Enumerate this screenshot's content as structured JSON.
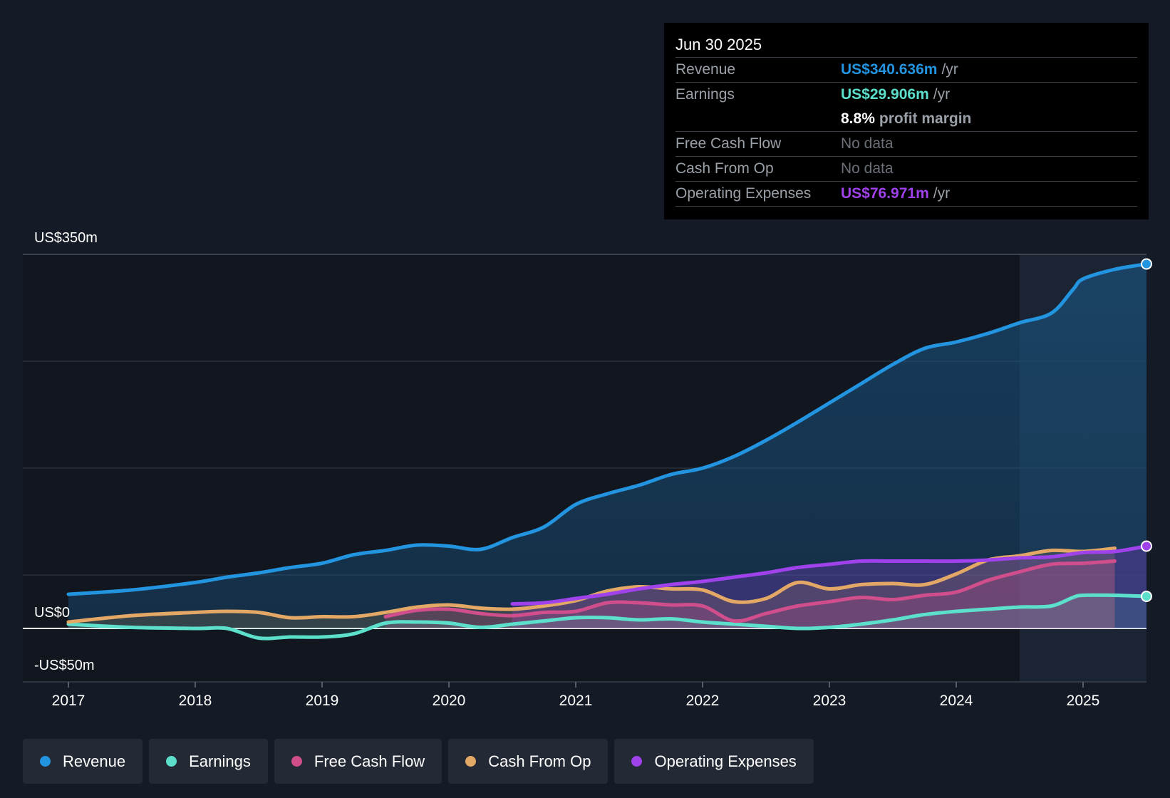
{
  "chart_data": {
    "type": "line",
    "x_ticks": [
      "2017",
      "2018",
      "2019",
      "2020",
      "2021",
      "2022",
      "2023",
      "2024",
      "2025"
    ],
    "y_labels": {
      "top": "US$350m",
      "zero": "US$0",
      "bottom": "-US$50m"
    },
    "ylim": [
      -50,
      350
    ],
    "xlim": [
      2017.0,
      2025.5
    ],
    "series": [
      {
        "name": "Revenue",
        "color": "#2394df",
        "points": [
          [
            2017.0,
            32
          ],
          [
            2017.5,
            36
          ],
          [
            2018.0,
            43
          ],
          [
            2018.25,
            48
          ],
          [
            2018.5,
            52
          ],
          [
            2018.75,
            57
          ],
          [
            2019.0,
            61
          ],
          [
            2019.25,
            69
          ],
          [
            2019.5,
            73
          ],
          [
            2019.75,
            78
          ],
          [
            2020.0,
            77
          ],
          [
            2020.25,
            74
          ],
          [
            2020.5,
            85
          ],
          [
            2020.75,
            95
          ],
          [
            2021.0,
            116
          ],
          [
            2021.25,
            126
          ],
          [
            2021.5,
            134
          ],
          [
            2021.75,
            144
          ],
          [
            2022.0,
            150
          ],
          [
            2022.25,
            161
          ],
          [
            2022.5,
            176
          ],
          [
            2022.75,
            193
          ],
          [
            2023.0,
            211
          ],
          [
            2023.25,
            229
          ],
          [
            2023.5,
            247
          ],
          [
            2023.75,
            262
          ],
          [
            2024.0,
            268
          ],
          [
            2024.25,
            276
          ],
          [
            2024.5,
            286
          ],
          [
            2024.75,
            295
          ],
          [
            2024.92,
            317
          ],
          [
            2025.0,
            327
          ],
          [
            2025.25,
            336
          ],
          [
            2025.5,
            341
          ]
        ]
      },
      {
        "name": "Earnings",
        "color": "#5ce0cc",
        "points": [
          [
            2017.0,
            4
          ],
          [
            2017.5,
            1
          ],
          [
            2018.0,
            0
          ],
          [
            2018.25,
            0
          ],
          [
            2018.5,
            -9
          ],
          [
            2018.75,
            -8
          ],
          [
            2019.0,
            -8
          ],
          [
            2019.25,
            -5
          ],
          [
            2019.5,
            5
          ],
          [
            2019.75,
            6
          ],
          [
            2020.0,
            5
          ],
          [
            2020.25,
            1
          ],
          [
            2020.5,
            4
          ],
          [
            2020.75,
            7
          ],
          [
            2021.0,
            10
          ],
          [
            2021.25,
            10
          ],
          [
            2021.5,
            8
          ],
          [
            2021.75,
            9
          ],
          [
            2022.0,
            6
          ],
          [
            2022.25,
            4
          ],
          [
            2022.5,
            2
          ],
          [
            2022.75,
            0
          ],
          [
            2023.0,
            1
          ],
          [
            2023.25,
            4
          ],
          [
            2023.5,
            8
          ],
          [
            2023.75,
            13
          ],
          [
            2024.0,
            16
          ],
          [
            2024.25,
            18
          ],
          [
            2024.5,
            20
          ],
          [
            2024.75,
            21
          ],
          [
            2024.92,
            29
          ],
          [
            2025.0,
            31
          ],
          [
            2025.25,
            31
          ],
          [
            2025.5,
            30
          ]
        ]
      },
      {
        "name": "Free Cash Flow",
        "color": "#d04e8b",
        "points": [
          [
            2019.5,
            11
          ],
          [
            2019.75,
            17
          ],
          [
            2020.0,
            18
          ],
          [
            2020.25,
            14
          ],
          [
            2020.5,
            12
          ],
          [
            2020.75,
            15
          ],
          [
            2021.0,
            16
          ],
          [
            2021.25,
            24
          ],
          [
            2021.5,
            24
          ],
          [
            2021.75,
            22
          ],
          [
            2022.0,
            21
          ],
          [
            2022.25,
            7
          ],
          [
            2022.5,
            14
          ],
          [
            2022.75,
            21
          ],
          [
            2023.0,
            25
          ],
          [
            2023.25,
            29
          ],
          [
            2023.5,
            27
          ],
          [
            2023.75,
            31
          ],
          [
            2024.0,
            34
          ],
          [
            2024.25,
            45
          ],
          [
            2024.5,
            53
          ],
          [
            2024.75,
            60
          ],
          [
            2025.0,
            61
          ],
          [
            2025.25,
            63
          ]
        ]
      },
      {
        "name": "Cash From Op",
        "color": "#e3a865",
        "points": [
          [
            2017.0,
            6
          ],
          [
            2017.5,
            12
          ],
          [
            2018.0,
            15
          ],
          [
            2018.25,
            16
          ],
          [
            2018.5,
            15
          ],
          [
            2018.75,
            10
          ],
          [
            2019.0,
            11
          ],
          [
            2019.25,
            11
          ],
          [
            2019.5,
            15
          ],
          [
            2019.75,
            20
          ],
          [
            2020.0,
            22
          ],
          [
            2020.25,
            19
          ],
          [
            2020.5,
            18
          ],
          [
            2020.75,
            21
          ],
          [
            2021.0,
            26
          ],
          [
            2021.25,
            35
          ],
          [
            2021.5,
            39
          ],
          [
            2021.75,
            37
          ],
          [
            2022.0,
            36
          ],
          [
            2022.25,
            25
          ],
          [
            2022.5,
            28
          ],
          [
            2022.75,
            43
          ],
          [
            2023.0,
            37
          ],
          [
            2023.25,
            41
          ],
          [
            2023.5,
            42
          ],
          [
            2023.75,
            41
          ],
          [
            2024.0,
            51
          ],
          [
            2024.25,
            64
          ],
          [
            2024.5,
            68
          ],
          [
            2024.75,
            73
          ],
          [
            2025.0,
            72
          ],
          [
            2025.25,
            75
          ]
        ]
      },
      {
        "name": "Operating Expenses",
        "color": "#a042ec",
        "points": [
          [
            2020.5,
            23
          ],
          [
            2020.75,
            24
          ],
          [
            2021.0,
            28
          ],
          [
            2021.25,
            32
          ],
          [
            2021.5,
            37
          ],
          [
            2021.75,
            41
          ],
          [
            2022.0,
            44
          ],
          [
            2022.25,
            48
          ],
          [
            2022.5,
            52
          ],
          [
            2022.75,
            57
          ],
          [
            2023.0,
            60
          ],
          [
            2023.25,
            63
          ],
          [
            2023.5,
            63
          ],
          [
            2023.75,
            63
          ],
          [
            2024.0,
            63
          ],
          [
            2024.25,
            64
          ],
          [
            2024.5,
            66
          ],
          [
            2024.75,
            67
          ],
          [
            2025.0,
            71
          ],
          [
            2025.25,
            72
          ],
          [
            2025.5,
            77
          ]
        ]
      }
    ],
    "highlight_from": 2024.5
  },
  "tooltip": {
    "date": "Jun 30 2025",
    "revenue_label": "Revenue",
    "revenue_value": "US$340.636m",
    "revenue_unit": "/yr",
    "earnings_label": "Earnings",
    "earnings_value": "US$29.906m",
    "earnings_unit": "/yr",
    "margin_value": "8.8%",
    "margin_text": "profit margin",
    "fcf_label": "Free Cash Flow",
    "fcf_value": "No data",
    "cfo_label": "Cash From Op",
    "cfo_value": "No data",
    "opex_label": "Operating Expenses",
    "opex_value": "US$76.971m",
    "opex_unit": "/yr"
  },
  "legend": [
    {
      "label": "Revenue",
      "color": "#2394df"
    },
    {
      "label": "Earnings",
      "color": "#5ce0cc"
    },
    {
      "label": "Free Cash Flow",
      "color": "#d04e8b"
    },
    {
      "label": "Cash From Op",
      "color": "#e3a865"
    },
    {
      "label": "Operating Expenses",
      "color": "#a042ec"
    }
  ]
}
